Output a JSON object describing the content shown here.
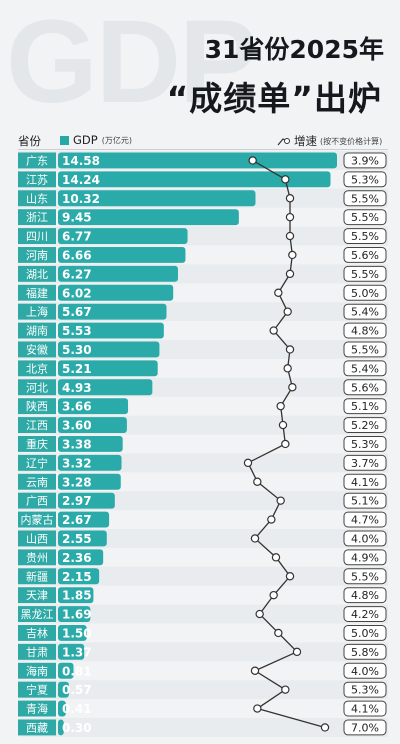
{
  "watermark": "GDP",
  "title_line1": "31省份2025年",
  "title_line2": "“成绩单”出炉",
  "header": {
    "province": "省份",
    "gdp": "GDP",
    "gdp_unit": "(万亿元)",
    "growth": "增速",
    "growth_note": "(按不变价格计算)"
  },
  "colors": {
    "bar": "#2aaaa8",
    "bar_dark": "#1e9996",
    "label_bg": "#2fa9a6",
    "row_alt": "#e9ecee",
    "line": "#333333"
  },
  "chart_data": {
    "type": "bar",
    "title": "31省份2025年“成绩单”出炉",
    "xlabel": "GDP",
    "ylabel": "省份",
    "value_unit": "(万亿元)",
    "categories": [
      "广东",
      "江苏",
      "山东",
      "浙江",
      "四川",
      "河南",
      "湖北",
      "福建",
      "上海",
      "湖南",
      "安徽",
      "北京",
      "河北",
      "陕西",
      "江西",
      "重庆",
      "辽宁",
      "云南",
      "广西",
      "内蒙古",
      "山西",
      "贵州",
      "新疆",
      "天津",
      "黑龙江",
      "吉林",
      "甘肃",
      "海南",
      "宁夏",
      "青海",
      "西藏"
    ],
    "series": [
      {
        "name": "GDP",
        "values": [
          14.58,
          14.24,
          10.32,
          9.45,
          6.77,
          6.66,
          6.27,
          6.02,
          5.67,
          5.53,
          5.3,
          5.21,
          4.93,
          3.66,
          3.6,
          3.38,
          3.32,
          3.28,
          2.97,
          2.67,
          2.55,
          2.36,
          2.15,
          1.85,
          1.69,
          1.5,
          1.37,
          0.81,
          0.57,
          0.41,
          0.3
        ],
        "labels": [
          "14.58",
          "14.24",
          "10.32",
          "9.45",
          "6.77",
          "6.66",
          "6.27",
          "6.02",
          "5.67",
          "5.53",
          "5.30",
          "5.21",
          "4.93",
          "3.66",
          "3.60",
          "3.38",
          "3.32",
          "3.28",
          "2.97",
          "2.67",
          "2.55",
          "2.36",
          "2.15",
          "1.85",
          "1.69",
          "1.50",
          "1.37",
          "0.81",
          "0.57",
          "0.41",
          "0.30"
        ]
      },
      {
        "name": "增速",
        "values": [
          3.9,
          5.3,
          5.5,
          5.5,
          5.5,
          5.6,
          5.5,
          5.0,
          5.4,
          4.8,
          5.5,
          5.4,
          5.6,
          5.1,
          5.2,
          5.3,
          3.7,
          4.1,
          5.1,
          4.7,
          4.0,
          4.9,
          5.5,
          4.8,
          4.2,
          5.0,
          5.8,
          4.0,
          5.3,
          4.1,
          7.0
        ],
        "labels": [
          "3.9%",
          "5.3%",
          "5.5%",
          "5.5%",
          "5.5%",
          "5.6%",
          "5.5%",
          "5.0%",
          "5.4%",
          "4.8%",
          "5.5%",
          "5.4%",
          "5.6%",
          "5.1%",
          "5.2%",
          "5.3%",
          "3.7%",
          "4.1%",
          "5.1%",
          "4.7%",
          "4.0%",
          "4.9%",
          "5.5%",
          "4.8%",
          "4.2%",
          "5.0%",
          "5.8%",
          "4.0%",
          "5.3%",
          "4.1%",
          "7.0%"
        ]
      }
    ],
    "xlim": [
      0,
      14.58
    ],
    "growth_range": [
      3.7,
      7.0
    ]
  }
}
